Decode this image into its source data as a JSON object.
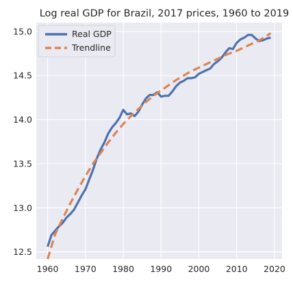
{
  "chart_data": {
    "type": "line",
    "title": "Log real GDP for Brazil, 2017 prices, 1960 to 2019",
    "xlabel": "",
    "ylabel": "",
    "xlim": [
      1957.0,
      2022.0
    ],
    "ylim": [
      12.42,
      15.1
    ],
    "x_ticks": [
      1960,
      1970,
      1980,
      1990,
      2000,
      2010,
      2020
    ],
    "y_ticks": [
      12.5,
      13.0,
      13.5,
      14.0,
      14.5,
      15.0
    ],
    "x_tick_labels": [
      "1960",
      "1970",
      "1980",
      "1990",
      "2000",
      "2010",
      "2020"
    ],
    "y_tick_labels": [
      "12.5",
      "13.0",
      "13.5",
      "14.0",
      "14.5",
      "15.0"
    ],
    "grid": true,
    "legend_position": "top-left",
    "background_color": "#eaeaf2",
    "series": [
      {
        "name": "Real GDP",
        "color": "#4c72b0",
        "style": "solid",
        "x": [
          1960,
          1961,
          1962,
          1963,
          1964,
          1965,
          1966,
          1967,
          1968,
          1969,
          1970,
          1971,
          1972,
          1973,
          1974,
          1975,
          1976,
          1977,
          1978,
          1979,
          1980,
          1981,
          1982,
          1983,
          1984,
          1985,
          1986,
          1987,
          1988,
          1989,
          1990,
          1991,
          1992,
          1993,
          1994,
          1995,
          1996,
          1997,
          1998,
          1999,
          2000,
          2001,
          2002,
          2003,
          2004,
          2005,
          2006,
          2007,
          2008,
          2009,
          2010,
          2011,
          2012,
          2013,
          2014,
          2015,
          2016,
          2017,
          2018,
          2019
        ],
        "values": [
          12.56,
          12.69,
          12.74,
          12.79,
          12.83,
          12.89,
          12.93,
          12.98,
          13.06,
          13.14,
          13.21,
          13.32,
          13.43,
          13.56,
          13.66,
          13.74,
          13.84,
          13.91,
          13.96,
          14.02,
          14.11,
          14.06,
          14.07,
          14.04,
          14.09,
          14.17,
          14.24,
          14.28,
          14.28,
          14.31,
          14.26,
          14.27,
          14.27,
          14.32,
          14.38,
          14.42,
          14.44,
          14.47,
          14.47,
          14.48,
          14.52,
          14.54,
          14.56,
          14.58,
          14.63,
          14.66,
          14.7,
          14.76,
          14.81,
          14.8,
          14.87,
          14.91,
          14.93,
          14.96,
          14.96,
          14.92,
          14.89,
          14.9,
          14.92,
          14.93
        ]
      },
      {
        "name": "Trendline",
        "color": "#dd8452",
        "style": "dashed",
        "x": [
          1960,
          1962,
          1964,
          1966,
          1968,
          1970,
          1972,
          1974,
          1976,
          1978,
          1980,
          1982,
          1984,
          1986,
          1988,
          1990,
          1992,
          1994,
          1996,
          1998,
          2000,
          2002,
          2004,
          2006,
          2008,
          2010,
          2012,
          2014,
          2016,
          2018,
          2019
        ],
        "values": [
          12.42,
          12.7,
          12.88,
          13.05,
          13.21,
          13.36,
          13.5,
          13.62,
          13.74,
          13.85,
          13.95,
          14.04,
          14.12,
          14.2,
          14.27,
          14.33,
          14.39,
          14.45,
          14.5,
          14.55,
          14.59,
          14.63,
          14.67,
          14.71,
          14.75,
          14.78,
          14.82,
          14.86,
          14.9,
          14.95,
          14.98
        ]
      }
    ]
  }
}
